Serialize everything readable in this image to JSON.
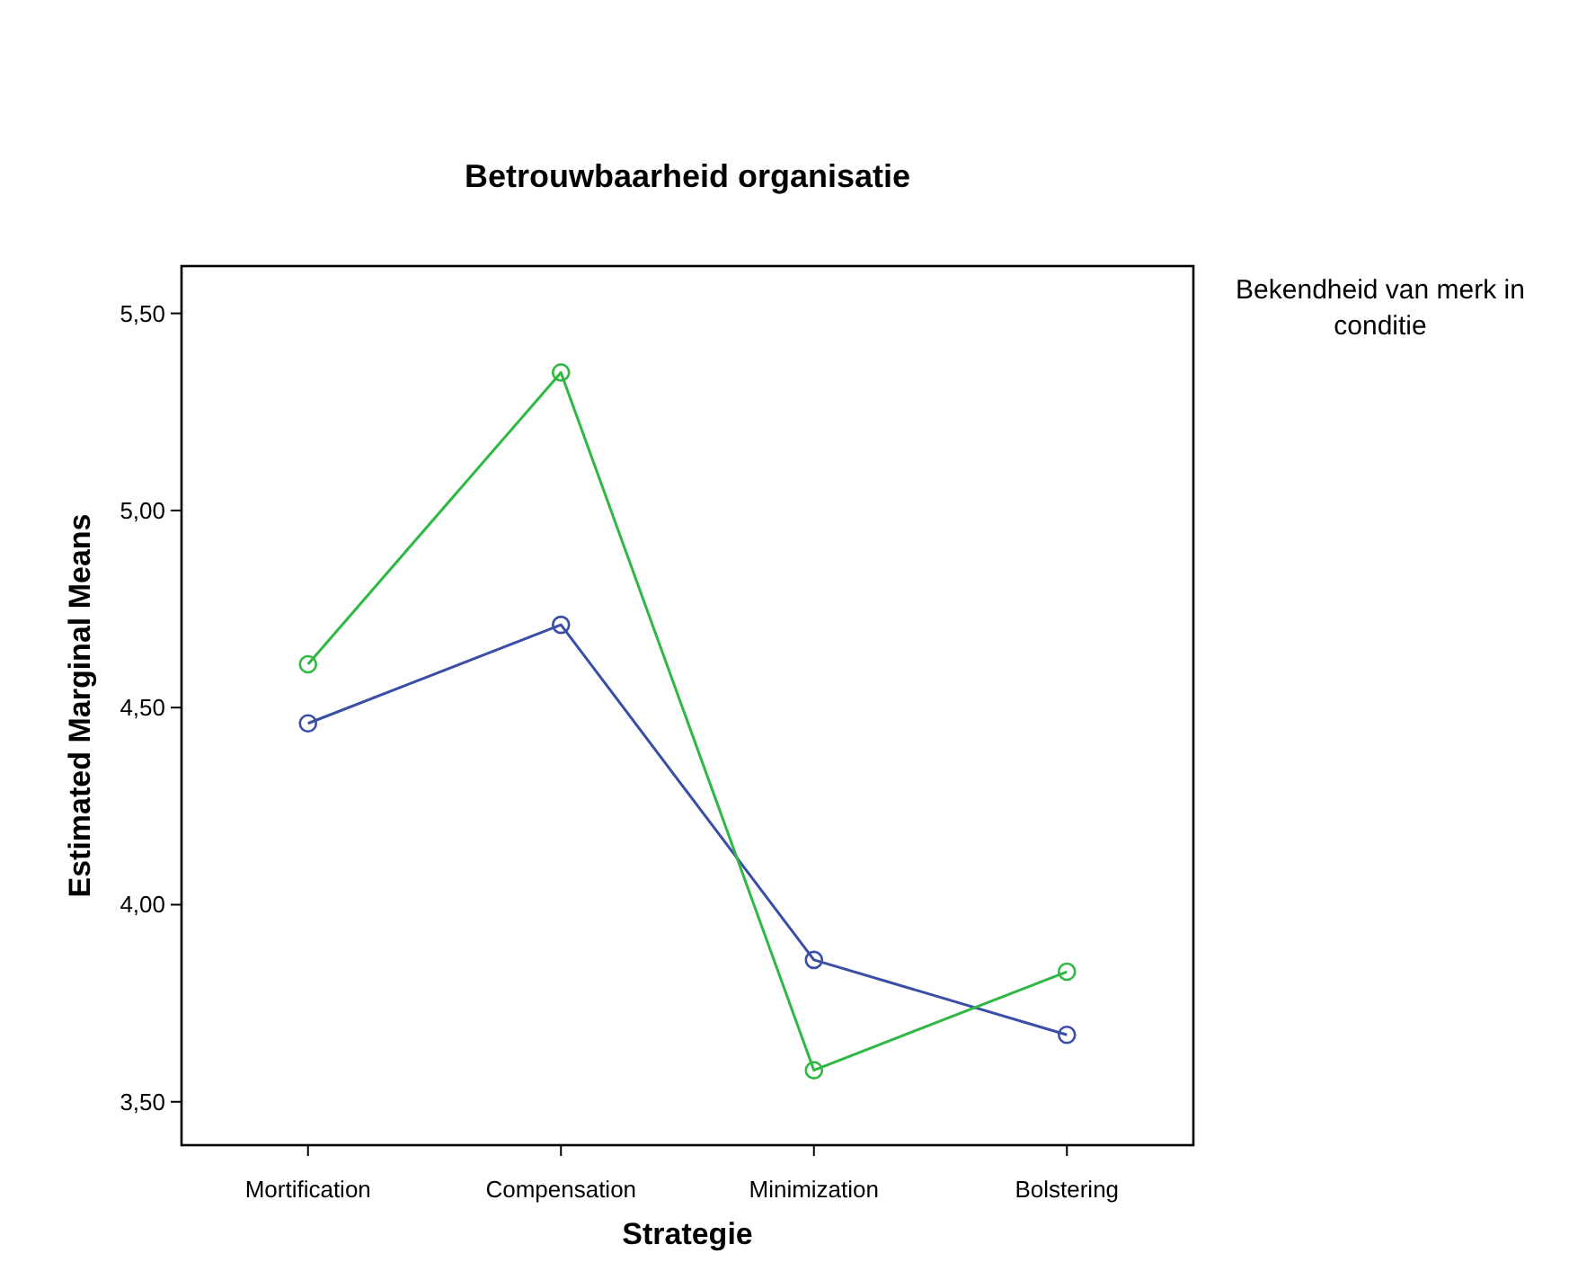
{
  "chart_data": {
    "type": "line",
    "title": "Betrouwbaarheid organisatie",
    "xlabel": "Strategie",
    "ylabel": "Estimated Marginal Means",
    "legend_title": "Bekendheid van merk in conditie",
    "categories": [
      "Mortification",
      "Compensation",
      "Minimization",
      "Bolstering"
    ],
    "series": [
      {
        "color": "#3b4ea6",
        "values": [
          4.46,
          4.71,
          3.86,
          3.67
        ]
      },
      {
        "color": "#2fb844",
        "values": [
          4.61,
          5.35,
          3.58,
          3.83
        ]
      }
    ],
    "ylim": [
      3.39,
      5.62
    ],
    "yticks": [
      {
        "value": 3.5,
        "label": "3,50"
      },
      {
        "value": 4,
        "label": "4,00"
      },
      {
        "value": 4.5,
        "label": "4,50"
      },
      {
        "value": 5,
        "label": "5,00"
      },
      {
        "value": 5.5,
        "label": "5,50"
      }
    ],
    "grid": false,
    "legend": false,
    "marker": "circle",
    "line_style": "solid"
  }
}
